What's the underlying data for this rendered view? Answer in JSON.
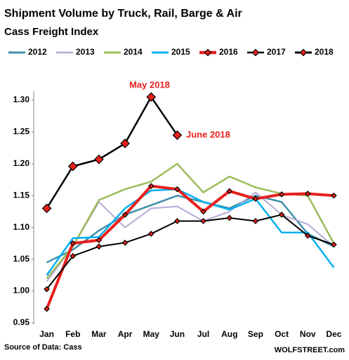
{
  "chart_data": {
    "type": "line",
    "title": "Shipment Volume by Truck, Rail, Barge & Air",
    "subtitle": "Cass Freight Index",
    "source": "Source of Data: Cass",
    "credit": "WOLFSTREET.com",
    "annotations": [
      "May 2018",
      "June 2018"
    ],
    "categories": [
      "Jan",
      "Feb",
      "Mar",
      "Apr",
      "May",
      "Jun",
      "Jul",
      "Aug",
      "Sep",
      "Oct",
      "Nov",
      "Dec"
    ],
    "ylim": [
      0.95,
      1.3
    ],
    "yticks": [
      0.95,
      {
        "value": 1.0,
        "label": "1.00"
      },
      1.05,
      {
        "value": 1.1,
        "label": "1.10"
      },
      1.15,
      {
        "value": 1.2,
        "label": "1.20"
      },
      1.25,
      {
        "value": 1.3,
        "label": "1.30"
      }
    ],
    "grid": false,
    "legend": "top",
    "series": [
      {
        "name": "2012",
        "color": "#3f8fa8",
        "values": [
          1.045,
          1.065,
          1.095,
          1.12,
          1.135,
          1.15,
          1.14,
          1.13,
          1.15,
          1.14,
          1.09,
          1.07
        ]
      },
      {
        "name": "2013",
        "color": "#b7a9d4",
        "values": [
          1.015,
          1.07,
          1.14,
          1.1,
          1.13,
          1.133,
          1.11,
          1.125,
          1.155,
          1.12,
          1.105,
          1.07
        ]
      },
      {
        "name": "2014",
        "color": "#9bbb59",
        "values": [
          1.02,
          1.07,
          1.143,
          1.16,
          1.172,
          1.2,
          1.155,
          1.18,
          1.163,
          1.153,
          1.15,
          1.075
        ]
      },
      {
        "name": "2015",
        "color": "#00b0f0",
        "values": [
          1.025,
          1.083,
          1.085,
          1.13,
          1.158,
          1.16,
          1.14,
          1.128,
          1.145,
          1.092,
          1.092,
          1.037
        ]
      },
      {
        "name": "2016",
        "color": "#e8201c",
        "marker_color": "#e8201c",
        "values": [
          0.972,
          1.075,
          1.08,
          1.12,
          1.165,
          1.16,
          1.125,
          1.157,
          1.145,
          1.152,
          1.153,
          1.15
        ]
      },
      {
        "name": "2017",
        "color": "#000000",
        "marker_color": "#e8201c",
        "values": [
          1.003,
          1.055,
          1.07,
          1.076,
          1.09,
          1.11,
          1.11,
          1.115,
          1.11,
          1.12,
          1.087,
          1.073
        ]
      },
      {
        "name": "2018",
        "color": "#000000",
        "marker_color": "#e8201c",
        "values": [
          1.13,
          1.196,
          1.207,
          1.232,
          1.305,
          1.245,
          null,
          null,
          null,
          null,
          null,
          null
        ]
      }
    ]
  }
}
